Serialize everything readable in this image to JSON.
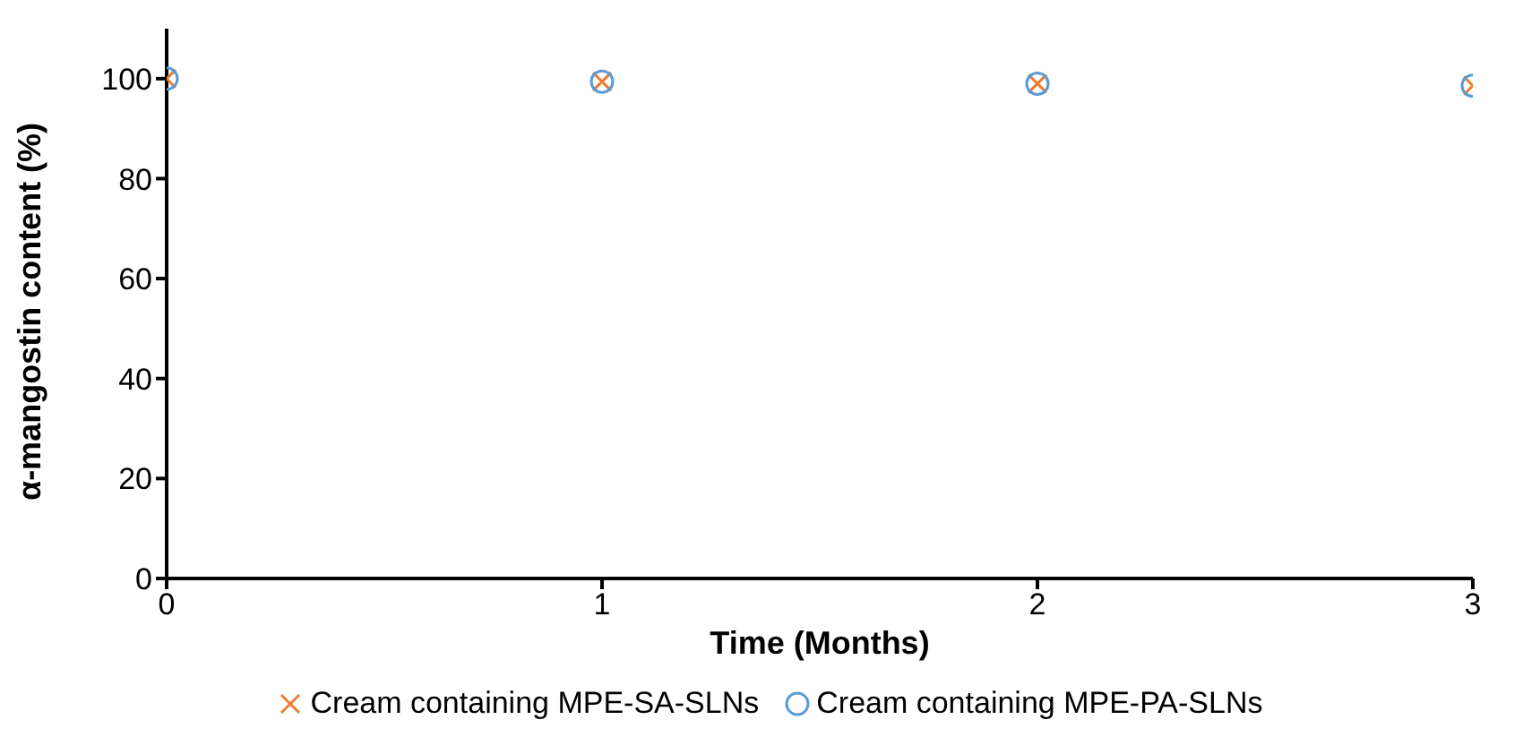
{
  "chart_data": {
    "type": "scatter",
    "xlabel": "Time (Months)",
    "ylabel": "α-mangostin content (%)",
    "x": [
      0,
      1,
      2,
      3
    ],
    "series": [
      {
        "name": "Cream containing MPE-SA-SLNs",
        "color": "#ed7d31",
        "marker": "cross",
        "values": [
          100,
          99.4,
          99,
          98.6
        ]
      },
      {
        "name": "Cream containing MPE-PA-SLNs",
        "color": "#5b9bd5",
        "marker": "circle",
        "values": [
          100,
          99.4,
          99,
          98.6
        ]
      }
    ],
    "xlim": [
      0,
      3
    ],
    "xticks": [
      0,
      1,
      2,
      3
    ],
    "ylim": [
      0,
      110
    ],
    "yticks": [
      0,
      20,
      40,
      60,
      80,
      100
    ],
    "grid": false,
    "legend": "bottom"
  }
}
